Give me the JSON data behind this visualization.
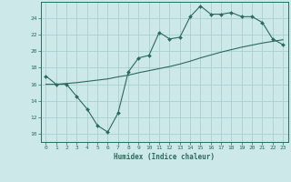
{
  "xlabel": "Humidex (Indice chaleur)",
  "ylabel": "",
  "xlim": [
    -0.5,
    23.5
  ],
  "ylim": [
    9,
    26
  ],
  "bg_color": "#cce8e8",
  "grid_color": "#aad0d0",
  "line_color": "#2a6b5e",
  "xticks": [
    0,
    1,
    2,
    3,
    4,
    5,
    6,
    7,
    8,
    9,
    10,
    11,
    12,
    13,
    14,
    15,
    16,
    17,
    18,
    19,
    20,
    21,
    22,
    23
  ],
  "yticks": [
    10,
    12,
    14,
    16,
    18,
    20,
    22,
    24
  ],
  "data_x": [
    0,
    1,
    2,
    3,
    4,
    5,
    6,
    7,
    8,
    9,
    10,
    11,
    12,
    13,
    14,
    15,
    16,
    17,
    18,
    19,
    20,
    21,
    22,
    23
  ],
  "data_y1": [
    17,
    16,
    16,
    14.5,
    13,
    11,
    10.2,
    12.5,
    17.5,
    19.2,
    19.5,
    22.3,
    21.5,
    21.7,
    24.2,
    25.5,
    24.5,
    24.5,
    24.7,
    24.2,
    24.2,
    23.5,
    21.5,
    20.8
  ],
  "data_y2": [
    16.0,
    16.0,
    16.1,
    16.2,
    16.35,
    16.5,
    16.65,
    16.9,
    17.1,
    17.4,
    17.65,
    17.9,
    18.15,
    18.45,
    18.8,
    19.2,
    19.55,
    19.9,
    20.2,
    20.5,
    20.75,
    21.0,
    21.2,
    21.4
  ]
}
